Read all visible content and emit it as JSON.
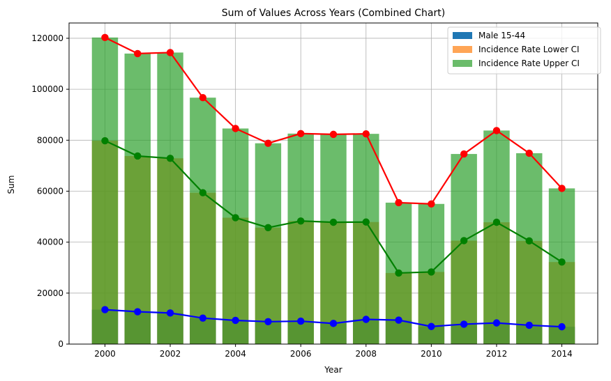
{
  "chart_data": {
    "type": "bar",
    "title": "Sum of Values Across Years (Combined Chart)",
    "xlabel": "Year",
    "ylabel": "Sum",
    "x": [
      2000,
      2001,
      2002,
      2003,
      2004,
      2005,
      2006,
      2007,
      2008,
      2009,
      2010,
      2011,
      2012,
      2013,
      2014
    ],
    "xticks": [
      "2000",
      "2002",
      "2004",
      "2006",
      "2008",
      "2010",
      "2012",
      "2014"
    ],
    "yticks": [
      "0",
      "20000",
      "40000",
      "60000",
      "80000",
      "100000",
      "120000"
    ],
    "xlim": [
      1998.9,
      2015.1
    ],
    "ylim": [
      0,
      126000
    ],
    "grid": true,
    "legend_position": "upper right",
    "series": [
      {
        "name": "Male 15-44",
        "kind": "bar+line",
        "bar_color": "#1f77b4",
        "line_color": "#0000ff",
        "values": [
          13500,
          12700,
          12200,
          10200,
          9300,
          8800,
          9000,
          8100,
          9700,
          9400,
          6900,
          7800,
          8300,
          7400,
          6800
        ]
      },
      {
        "name": "Incidence Rate Lower CI",
        "kind": "bar+line",
        "bar_color": "#ff7f0e",
        "line_color": "#008000",
        "values": [
          79800,
          73800,
          72900,
          59400,
          49600,
          45700,
          48300,
          47800,
          47900,
          27900,
          28300,
          40600,
          47800,
          40500,
          32200
        ]
      },
      {
        "name": "Incidence Rate Upper CI",
        "kind": "bar+line",
        "bar_color": "#2ca02c",
        "line_color": "#ff0000",
        "values": [
          120300,
          114000,
          114400,
          96700,
          84600,
          78800,
          82600,
          82300,
          82500,
          55500,
          55000,
          74600,
          83800,
          74900,
          61100
        ]
      }
    ]
  }
}
